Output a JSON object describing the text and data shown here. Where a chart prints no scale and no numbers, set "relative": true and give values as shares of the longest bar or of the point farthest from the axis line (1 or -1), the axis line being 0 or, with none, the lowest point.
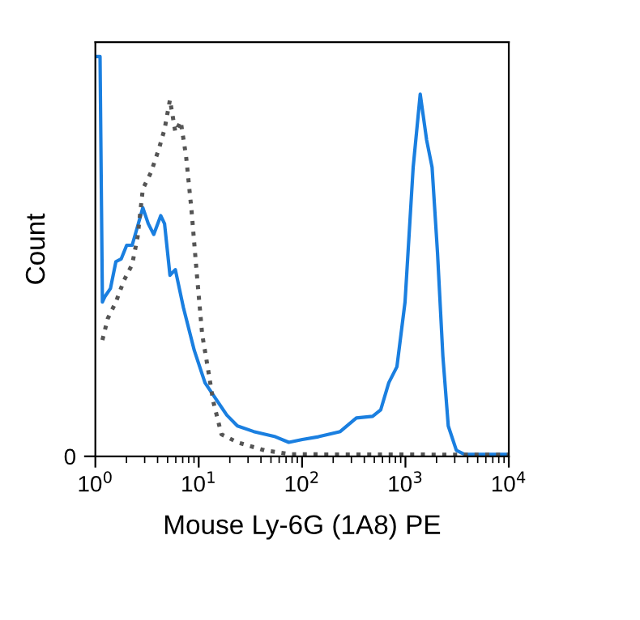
{
  "chart_data": {
    "type": "line",
    "relative": true,
    "log": "x",
    "xlabel": "Mouse Ly-6G (1A8) PE",
    "ylabel": "Count",
    "xlim": [
      1,
      10000
    ],
    "xticks": [
      {
        "value": 1,
        "label": "10$^{0}$"
      },
      {
        "value": 10,
        "label": "10$^{1}$"
      },
      {
        "value": 100,
        "label": "10$^{2}$"
      },
      {
        "value": 1000,
        "label": "10$^{3}$"
      },
      {
        "value": 10000,
        "label": "10$^{4}$"
      }
    ],
    "annotations": [
      "0"
    ],
    "grid": false,
    "marker": "none",
    "series": [
      {
        "color": "#1a7fe0",
        "line_style": "solid",
        "x": [
          1.01,
          1.11,
          1.17,
          1.24,
          1.4,
          1.58,
          1.78,
          2.01,
          2.27,
          2.56,
          2.88,
          3.25,
          3.67,
          4.29,
          4.67,
          5.27,
          5.94,
          7.11,
          9.06,
          11.5,
          14.7,
          18.7,
          23.7,
          34.0,
          55.1,
          74.4,
          100.6,
          144,
          234,
          335,
          481,
          576,
          690,
          827,
          991,
          1188,
          1390,
          1604,
          1810,
          2042,
          2302,
          2596,
          3110,
          3727,
          10000
        ],
        "values": [
          1.0,
          1.0,
          0.386,
          0.4,
          0.42,
          0.487,
          0.494,
          0.528,
          0.528,
          0.575,
          0.622,
          0.582,
          0.555,
          0.602,
          0.582,
          0.453,
          0.467,
          0.372,
          0.265,
          0.184,
          0.143,
          0.103,
          0.076,
          0.062,
          0.049,
          0.035,
          0.042,
          0.049,
          0.062,
          0.096,
          0.1,
          0.116,
          0.184,
          0.224,
          0.386,
          0.723,
          0.906,
          0.791,
          0.723,
          0.51,
          0.251,
          0.076,
          0.015,
          0.005,
          0.005
        ]
      },
      {
        "color": "#555555",
        "line_style": "dotted",
        "x": [
          1.17,
          1.32,
          1.58,
          1.89,
          2.27,
          2.56,
          2.88,
          3.45,
          4.14,
          4.67,
          5.27,
          5.94,
          6.7,
          7.55,
          8.52,
          9.61,
          10.8,
          12.2,
          13.8,
          16.6,
          23.7,
          43.3,
          78.9,
          10000
        ],
        "values": [
          0.291,
          0.345,
          0.386,
          0.44,
          0.48,
          0.548,
          0.669,
          0.71,
          0.771,
          0.818,
          0.892,
          0.811,
          0.838,
          0.75,
          0.615,
          0.453,
          0.305,
          0.224,
          0.138,
          0.055,
          0.035,
          0.015,
          0.005,
          0.004
        ]
      }
    ]
  }
}
